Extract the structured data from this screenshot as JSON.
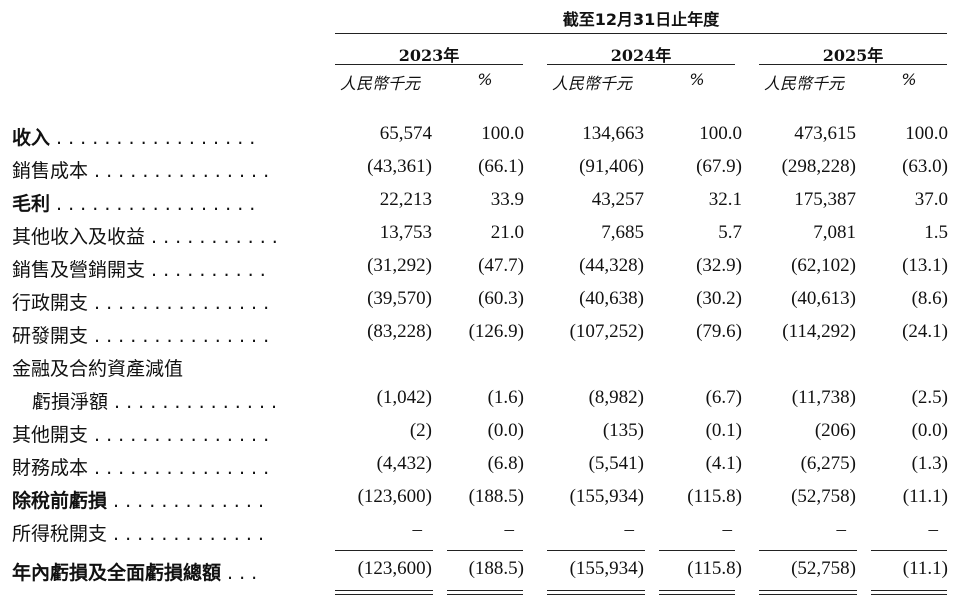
{
  "header": {
    "period": "截至12月31日止年度",
    "years": [
      "2023年",
      "2024年",
      "2025年"
    ],
    "amount_unit": "人民幣千元",
    "pct_unit": "%"
  },
  "rows": [
    {
      "label": "收入",
      "dots": ". . . . . . . . . . . . . . . . .",
      "bold": true,
      "values": [
        "65,574",
        "100.0",
        "134,663",
        "100.0",
        "473,615",
        "100.0"
      ]
    },
    {
      "label": "銷售成本",
      "dots": ". . . . . . . . . . . . . . .",
      "bold": false,
      "values": [
        "(43,361)",
        "(66.1)",
        "(91,406)",
        "(67.9)",
        "(298,228)",
        "(63.0)"
      ]
    },
    {
      "label": "毛利",
      "dots": ". . . . . . . . . . . . . . . . .",
      "bold": true,
      "values": [
        "22,213",
        "33.9",
        "43,257",
        "32.1",
        "175,387",
        "37.0"
      ]
    },
    {
      "label": "其他收入及收益",
      "dots": ". . . . . . . . . . .",
      "bold": false,
      "values": [
        "13,753",
        "21.0",
        "7,685",
        "5.7",
        "7,081",
        "1.5"
      ]
    },
    {
      "label": "銷售及營銷開支",
      "dots": ". . . . . . . . . .",
      "bold": false,
      "values": [
        "(31,292)",
        "(47.7)",
        "(44,328)",
        "(32.9)",
        "(62,102)",
        "(13.1)"
      ]
    },
    {
      "label": "行政開支",
      "dots": ". . . . . . . . . . . . . . .",
      "bold": false,
      "values": [
        "(39,570)",
        "(60.3)",
        "(40,638)",
        "(30.2)",
        "(40,613)",
        "(8.6)"
      ]
    },
    {
      "label": "研發開支",
      "dots": ". . . . . . . . . . . . . . .",
      "bold": false,
      "values": [
        "(83,228)",
        "(126.9)",
        "(107,252)",
        "(79.6)",
        "(114,292)",
        "(24.1)"
      ]
    },
    {
      "label": "金融及合約資產減值",
      "dots": "",
      "bold": false,
      "values": [
        "",
        "",
        "",
        "",
        "",
        ""
      ]
    },
    {
      "label": "虧損淨額",
      "dots": ". . . . . . . . . . . . . .",
      "bold": false,
      "indent": true,
      "values": [
        "(1,042)",
        "(1.6)",
        "(8,982)",
        "(6.7)",
        "(11,738)",
        "(2.5)"
      ]
    },
    {
      "label": "其他開支",
      "dots": ". . . . . . . . . . . . . . .",
      "bold": false,
      "values": [
        "(2)",
        "(0.0)",
        "(135)",
        "(0.1)",
        "(206)",
        "(0.0)"
      ]
    },
    {
      "label": "財務成本",
      "dots": ". . . . . . . . . . . . . . .",
      "bold": false,
      "values": [
        "(4,432)",
        "(6.8)",
        "(5,541)",
        "(4.1)",
        "(6,275)",
        "(1.3)"
      ]
    },
    {
      "label": "除稅前虧損",
      "dots": ". . . . . . . . . . . . .",
      "bold": true,
      "values": [
        "(123,600)",
        "(188.5)",
        "(155,934)",
        "(115.8)",
        "(52,758)",
        "(11.1)"
      ]
    },
    {
      "label": "所得稅開支",
      "dots": ". . . . . . . . . . . . .",
      "bold": false,
      "values": [
        "–",
        "–",
        "–",
        "–",
        "–",
        "–"
      ]
    },
    {
      "label": "年內虧損及全面虧損總額",
      "dots": ". . .",
      "bold": true,
      "values": [
        "(123,600)",
        "(188.5)",
        "(155,934)",
        "(115.8)",
        "(52,758)",
        "(11.1)"
      ]
    }
  ]
}
